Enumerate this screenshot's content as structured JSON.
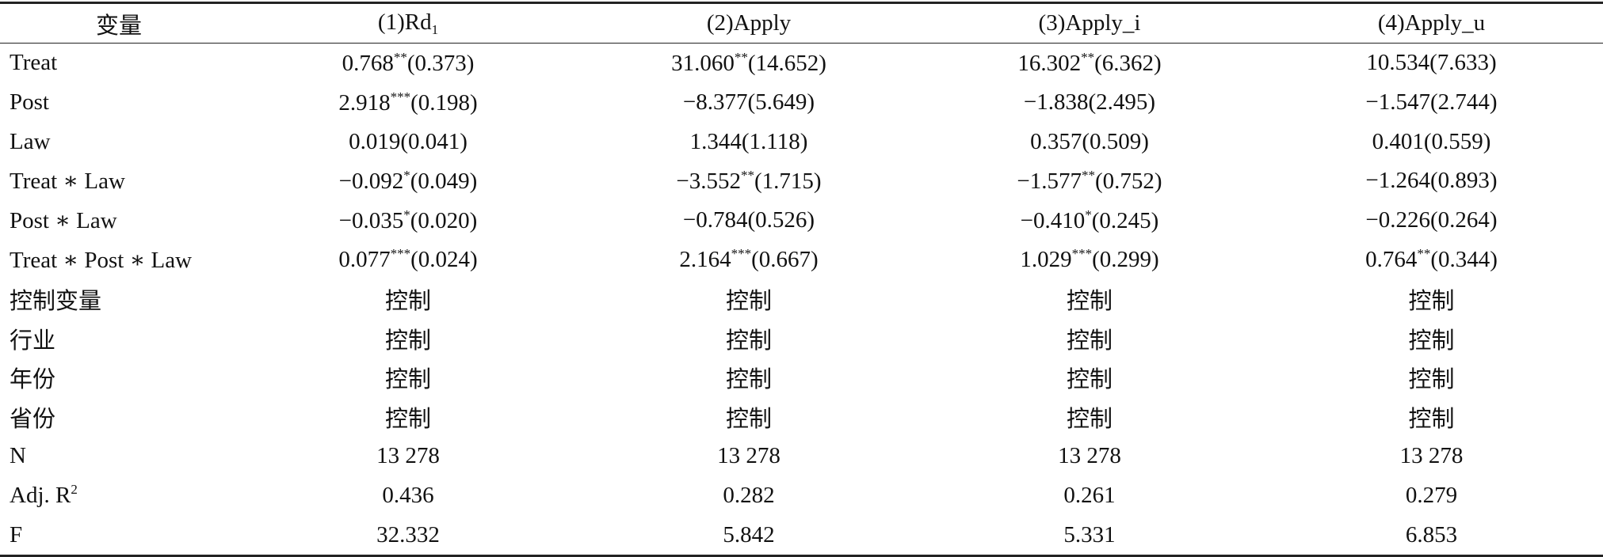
{
  "table": {
    "header": [
      {
        "text": "变量"
      },
      {
        "num": "(1)",
        "var": "Rd",
        "sub": "1"
      },
      {
        "num": "(2)",
        "var": "Apply"
      },
      {
        "num": "(3)",
        "var": "Apply_i"
      },
      {
        "num": "(4)",
        "var": "Apply_u"
      }
    ],
    "rows": [
      {
        "label": "Treat",
        "cells": [
          {
            "coef": "0.768",
            "stars": "**",
            "se": "(0.373)"
          },
          {
            "coef": "31.060",
            "stars": "**",
            "se": "(14.652)"
          },
          {
            "coef": "16.302",
            "stars": "**",
            "se": "(6.362)"
          },
          {
            "coef": "10.534",
            "se": "(7.633)"
          }
        ]
      },
      {
        "label": "Post",
        "cells": [
          {
            "coef": "2.918",
            "stars": "***",
            "se": "(0.198)"
          },
          {
            "coef": "−8.377",
            "se": "(5.649)"
          },
          {
            "coef": "−1.838",
            "se": "(2.495)"
          },
          {
            "coef": "−1.547",
            "se": "(2.744)"
          }
        ]
      },
      {
        "label": "Law",
        "cells": [
          {
            "coef": "0.019",
            "se": "(0.041)"
          },
          {
            "coef": "1.344",
            "se": "(1.118)"
          },
          {
            "coef": "0.357",
            "se": "(0.509)"
          },
          {
            "coef": "0.401",
            "se": "(0.559)"
          }
        ]
      },
      {
        "label": "Treat ∗ Law",
        "cells": [
          {
            "coef": "−0.092",
            "stars": "*",
            "se": "(0.049)"
          },
          {
            "coef": "−3.552",
            "stars": "**",
            "se": "(1.715)"
          },
          {
            "coef": "−1.577",
            "stars": "**",
            "se": "(0.752)"
          },
          {
            "coef": "−1.264",
            "se": "(0.893)"
          }
        ]
      },
      {
        "label": "Post ∗ Law",
        "cells": [
          {
            "coef": "−0.035",
            "stars": "*",
            "se": "(0.020)"
          },
          {
            "coef": "−0.784",
            "se": "(0.526)"
          },
          {
            "coef": "−0.410",
            "stars": "*",
            "se": "(0.245)"
          },
          {
            "coef": "−0.226",
            "se": "(0.264)"
          }
        ]
      },
      {
        "label": "Treat ∗ Post ∗ Law",
        "cells": [
          {
            "coef": "0.077",
            "stars": "***",
            "se": "(0.024)"
          },
          {
            "coef": "2.164",
            "stars": "***",
            "se": "(0.667)"
          },
          {
            "coef": "1.029",
            "stars": "***",
            "se": "(0.299)"
          },
          {
            "coef": "0.764",
            "stars": "**",
            "se": "(0.344)"
          }
        ]
      },
      {
        "label": "控制变量",
        "cells": [
          "控制",
          "控制",
          "控制",
          "控制"
        ]
      },
      {
        "label": "行业",
        "cells": [
          "控制",
          "控制",
          "控制",
          "控制"
        ]
      },
      {
        "label": "年份",
        "cells": [
          "控制",
          "控制",
          "控制",
          "控制"
        ]
      },
      {
        "label": "省份",
        "cells": [
          "控制",
          "控制",
          "控制",
          "控制"
        ]
      },
      {
        "label": "N",
        "cells": [
          "13 278",
          "13 278",
          "13 278",
          "13 278"
        ]
      },
      {
        "label": {
          "text": "Adj. R",
          "sup": "2"
        },
        "cells": [
          "0.436",
          "0.282",
          "0.261",
          "0.279"
        ]
      },
      {
        "label": "F",
        "cells": [
          "32.332",
          "5.842",
          "5.331",
          "6.853"
        ]
      }
    ]
  }
}
